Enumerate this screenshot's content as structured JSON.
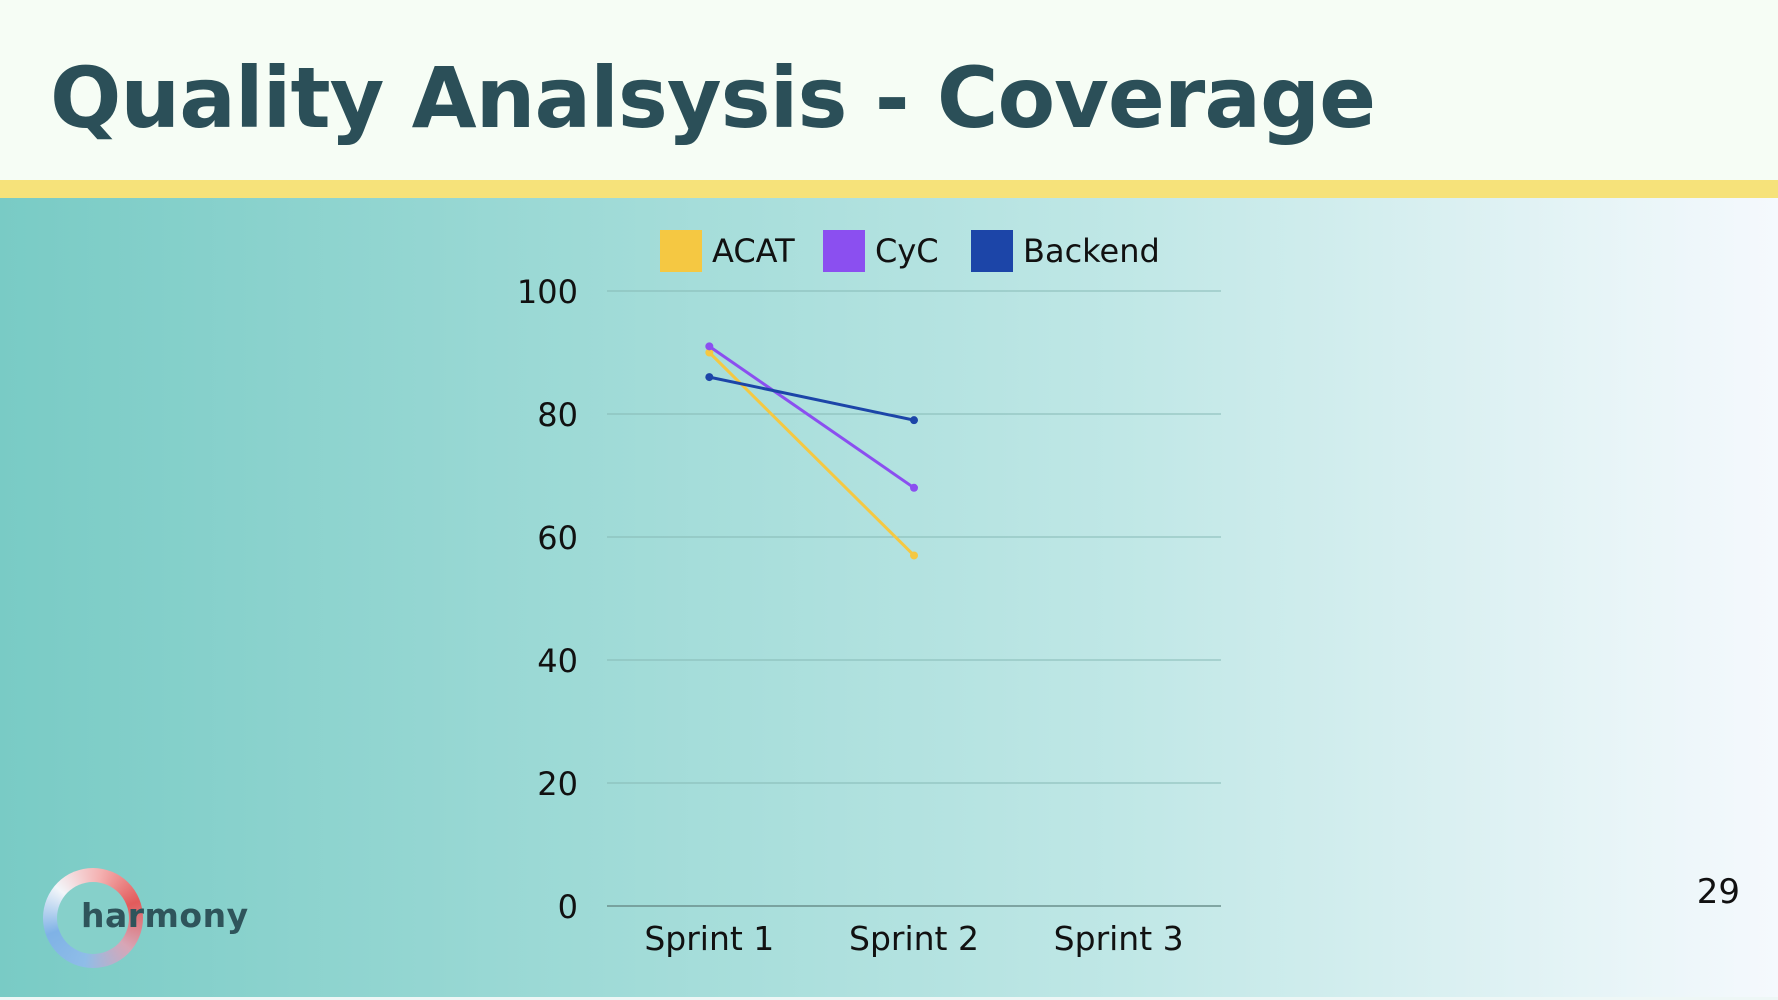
{
  "slide": {
    "title": "Quality Analsysis - Coverage",
    "page_number": "29",
    "logo_text": "harmony"
  },
  "colors": {
    "title": "#2b4f58",
    "accent_band": "#f6e27a",
    "ACAT": "#f5c842",
    "CyC": "#8b4ff0",
    "Backend": "#1c45a8"
  },
  "chart_data": {
    "type": "line",
    "title": "",
    "xlabel": "",
    "ylabel": "",
    "categories": [
      "Sprint 1",
      "Sprint 2",
      "Sprint 3"
    ],
    "ylim": [
      0,
      100
    ],
    "yticks": [
      "0",
      "20",
      "40",
      "60",
      "80",
      "100"
    ],
    "grid": true,
    "legend_position": "top",
    "series": [
      {
        "name": "ACAT",
        "color": "#f5c842",
        "values": [
          90,
          57,
          null
        ]
      },
      {
        "name": "CyC",
        "color": "#8b4ff0",
        "values": [
          91,
          68,
          null
        ]
      },
      {
        "name": "Backend",
        "color": "#1c45a8",
        "values": [
          86,
          79,
          null
        ]
      }
    ]
  }
}
